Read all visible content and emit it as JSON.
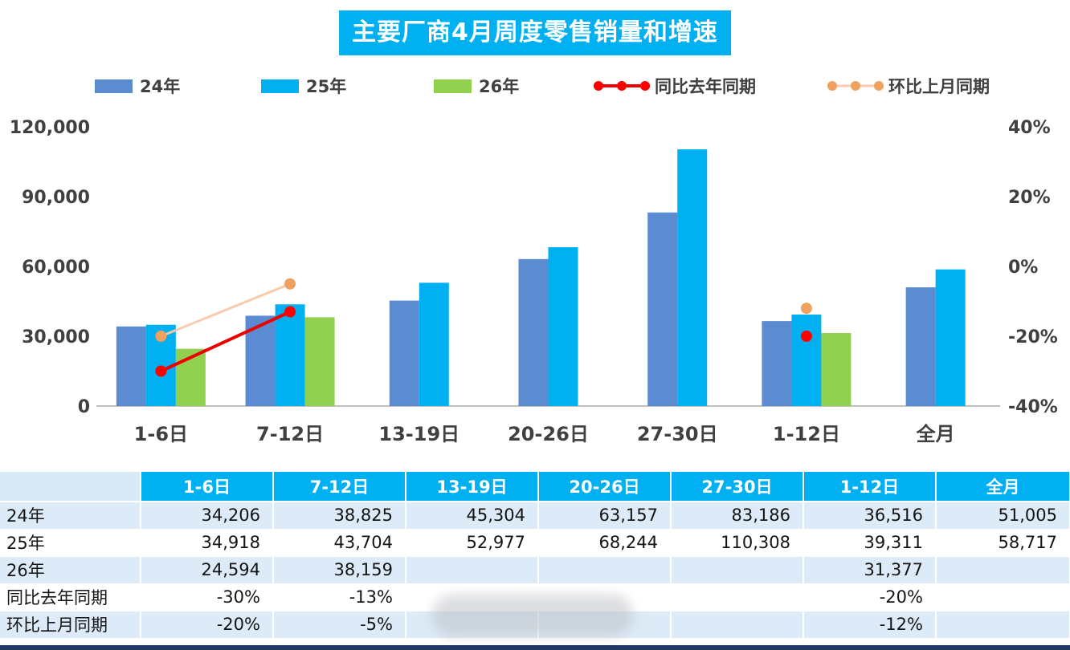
{
  "title": "主要厂商4月周度零售销量和增速",
  "legend": [
    {
      "label": "24年",
      "type": "bar",
      "color": "#5B8BD0"
    },
    {
      "label": "25年",
      "type": "bar",
      "color": "#00B0F0"
    },
    {
      "label": "26年",
      "type": "bar",
      "color": "#92D050"
    },
    {
      "label": "同比去年同期",
      "type": "line",
      "color": "#FF0000",
      "line_color": "#EE0000",
      "line_width": 4
    },
    {
      "label": "环比上月同期",
      "type": "line",
      "color": "#F0A15F",
      "line_color": "#F8CBAD",
      "line_width": 3
    }
  ],
  "chart_data": {
    "type": "bar+line",
    "title": "主要厂商4月周度零售销量和增速",
    "categories": [
      "1-6日",
      "7-12日",
      "13-19日",
      "20-26日",
      "27-30日",
      "1-12日",
      "全月"
    ],
    "bar_series": [
      {
        "name": "24年",
        "color": "#5B8BD0",
        "values": [
          34206,
          38825,
          45304,
          63157,
          83186,
          36516,
          51005
        ]
      },
      {
        "name": "25年",
        "color": "#00B0F0",
        "values": [
          34918,
          43704,
          52977,
          68244,
          110308,
          39311,
          58717
        ]
      },
      {
        "name": "26年",
        "color": "#92D050",
        "values": [
          24594,
          38159,
          null,
          null,
          null,
          31377,
          null
        ]
      }
    ],
    "line_series": [
      {
        "name": "同比去年同期",
        "axis": "right",
        "color": "#FF0000",
        "line_color": "#EE0000",
        "line_width": 4,
        "values_pct": [
          -30,
          -13,
          null,
          null,
          null,
          -20,
          null
        ]
      },
      {
        "name": "环比上月同期",
        "axis": "right",
        "color": "#F0A15F",
        "line_color": "#F8CBAD",
        "line_width": 3,
        "values_pct": [
          -20,
          -5,
          null,
          null,
          null,
          -12,
          null
        ]
      }
    ],
    "left_axis": {
      "min": 0,
      "max": 120000,
      "ticks": [
        {
          "v": 0,
          "label": "0"
        },
        {
          "v": 30000,
          "label": "30,000"
        },
        {
          "v": 60000,
          "label": "60,000"
        },
        {
          "v": 90000,
          "label": "90,000"
        },
        {
          "v": 120000,
          "label": "120,000"
        }
      ]
    },
    "right_axis": {
      "min": -40,
      "max": 40,
      "ticks": [
        {
          "v": -40,
          "label": "-40%"
        },
        {
          "v": -20,
          "label": "-20%"
        },
        {
          "v": 0,
          "label": "0%"
        },
        {
          "v": 20,
          "label": "20%"
        },
        {
          "v": 40,
          "label": "40%"
        }
      ]
    },
    "grid": false,
    "legend_position": "top"
  },
  "table": {
    "header": [
      "",
      "1-6日",
      "7-12日",
      "13-19日",
      "20-26日",
      "27-30日",
      "1-12日",
      "全月"
    ],
    "rows": [
      {
        "label": "24年",
        "values": [
          "34,206",
          "38,825",
          "45,304",
          "63,157",
          "83,186",
          "36,516",
          "51,005"
        ]
      },
      {
        "label": "25年",
        "values": [
          "34,918",
          "43,704",
          "52,977",
          "68,244",
          "110,308",
          "39,311",
          "58,717"
        ]
      },
      {
        "label": "26年",
        "values": [
          "24,594",
          "38,159",
          "",
          "",
          "",
          "31,377",
          ""
        ]
      },
      {
        "label": "同比去年同期",
        "values": [
          "-30%",
          "-13%",
          "",
          "",
          "",
          "-20%",
          ""
        ]
      },
      {
        "label": "环比上月同期",
        "values": [
          "-20%",
          "-5%",
          "",
          "",
          "",
          "-12%",
          ""
        ]
      }
    ]
  },
  "colors": {
    "accent": "#00B0F0",
    "row_band": "#DCEBF7",
    "bottom_bar": "#1F3864",
    "axis_text": "#404040"
  }
}
